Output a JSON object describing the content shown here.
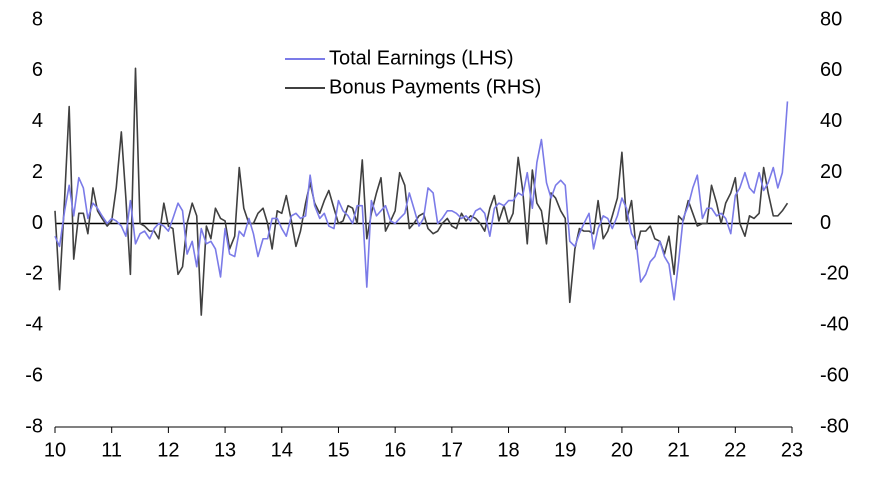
{
  "chart_data": {
    "type": "line",
    "x": [
      10.0,
      10.08,
      10.17,
      10.25,
      10.33,
      10.42,
      10.5,
      10.58,
      10.67,
      10.75,
      10.83,
      10.92,
      11.0,
      11.08,
      11.17,
      11.25,
      11.33,
      11.42,
      11.5,
      11.58,
      11.67,
      11.75,
      11.83,
      11.92,
      12.0,
      12.08,
      12.17,
      12.25,
      12.33,
      12.42,
      12.5,
      12.58,
      12.67,
      12.75,
      12.83,
      12.92,
      13.0,
      13.08,
      13.17,
      13.25,
      13.33,
      13.42,
      13.5,
      13.58,
      13.67,
      13.75,
      13.83,
      13.92,
      14.0,
      14.08,
      14.17,
      14.25,
      14.33,
      14.42,
      14.5,
      14.58,
      14.67,
      14.75,
      14.83,
      14.92,
      15.0,
      15.08,
      15.17,
      15.25,
      15.33,
      15.42,
      15.5,
      15.58,
      15.67,
      15.75,
      15.83,
      15.92,
      16.0,
      16.08,
      16.17,
      16.25,
      16.33,
      16.42,
      16.5,
      16.58,
      16.67,
      16.75,
      16.83,
      16.92,
      17.0,
      17.08,
      17.17,
      17.25,
      17.33,
      17.42,
      17.5,
      17.58,
      17.67,
      17.75,
      17.83,
      17.92,
      18.0,
      18.08,
      18.17,
      18.25,
      18.33,
      18.42,
      18.5,
      18.58,
      18.67,
      18.75,
      18.83,
      18.92,
      19.0,
      19.08,
      19.17,
      19.25,
      19.33,
      19.42,
      19.5,
      19.58,
      19.67,
      19.75,
      19.83,
      19.92,
      20.0,
      20.08,
      20.17,
      20.25,
      20.33,
      20.42,
      20.5,
      20.58,
      20.67,
      20.75,
      20.83,
      20.92,
      21.0,
      21.08,
      21.17,
      21.25,
      21.33,
      21.42,
      21.5,
      21.58,
      21.67,
      21.75,
      21.83,
      21.92,
      22.0,
      22.08,
      22.17,
      22.25,
      22.33,
      22.42,
      22.5,
      22.58,
      22.67,
      22.75,
      22.83,
      22.92
    ],
    "series": [
      {
        "name": "Total Earnings (LHS)",
        "color": "#7b7be8",
        "values": [
          -0.5,
          -0.9,
          0.5,
          1.5,
          0.3,
          1.8,
          1.4,
          0.2,
          0.8,
          0.6,
          0.3,
          0.0,
          0.2,
          0.1,
          -0.1,
          -0.5,
          0.9,
          -0.8,
          -0.4,
          -0.3,
          -0.6,
          -0.2,
          0.0,
          -0.1,
          -0.3,
          0.2,
          0.8,
          0.5,
          -1.2,
          -0.7,
          -1.7,
          -0.2,
          -0.8,
          -0.7,
          -1.0,
          -2.1,
          -0.2,
          -1.2,
          -1.3,
          -0.3,
          -0.5,
          0.2,
          -0.4,
          -1.3,
          -0.6,
          -0.6,
          0.2,
          0.2,
          -0.2,
          -0.5,
          0.3,
          0.4,
          0.2,
          0.3,
          1.9,
          0.7,
          0.2,
          0.4,
          -0.1,
          -0.2,
          0.9,
          0.5,
          0.3,
          0.0,
          0.7,
          0.7,
          -2.5,
          0.9,
          0.3,
          0.5,
          0.7,
          0.1,
          0.0,
          0.2,
          0.4,
          1.2,
          0.6,
          -0.1,
          0.2,
          1.4,
          1.2,
          0.0,
          0.2,
          0.5,
          0.5,
          0.4,
          0.2,
          0.3,
          0.1,
          0.5,
          0.6,
          0.4,
          -0.5,
          0.6,
          0.8,
          0.7,
          0.9,
          0.9,
          1.2,
          1.1,
          2.0,
          0.6,
          2.4,
          3.3,
          1.6,
          1.0,
          1.5,
          1.7,
          1.5,
          -0.7,
          -0.9,
          -0.4,
          0.0,
          0.4,
          -1.0,
          -0.2,
          0.3,
          0.2,
          -0.2,
          0.3,
          1.0,
          0.6,
          -0.4,
          -0.7,
          -2.3,
          -2.0,
          -1.5,
          -1.3,
          -0.7,
          -1.3,
          -1.6,
          -3.0,
          -1.5,
          0.2,
          0.7,
          1.4,
          1.9,
          0.2,
          0.6,
          0.6,
          0.3,
          0.4,
          0.2,
          -0.4,
          1.1,
          1.4,
          2.0,
          1.4,
          1.2,
          2.0,
          1.3,
          1.6,
          2.2,
          1.4,
          2.0,
          4.8
        ]
      },
      {
        "name": "Bonus Payments (RHS)",
        "color": "#404040",
        "axis": "y2",
        "values": [
          5,
          -26,
          10,
          46,
          -14,
          4,
          4,
          -4,
          14,
          5,
          2,
          -1,
          1,
          14,
          36,
          10,
          -20,
          61,
          0,
          -1,
          -3,
          -3,
          -6,
          8,
          -1,
          -2,
          -20,
          -17,
          0,
          8,
          3,
          -36,
          -1,
          -6,
          6,
          2,
          1,
          -10,
          -5,
          22,
          6,
          0,
          0,
          4,
          6,
          0,
          -10,
          5,
          4,
          11,
          1,
          -9,
          -3,
          8,
          16,
          8,
          4,
          9,
          13,
          6,
          0,
          1,
          7,
          6,
          0,
          25,
          -6,
          4,
          12,
          18,
          -3,
          1,
          5,
          20,
          15,
          -2,
          0,
          3,
          4,
          -2,
          -4,
          -3,
          0,
          2,
          -1,
          -2,
          4,
          1,
          3,
          2,
          0,
          -3,
          6,
          11,
          1,
          7,
          0,
          4,
          26,
          13,
          -8,
          21,
          8,
          5,
          -8,
          12,
          10,
          5,
          2,
          -31,
          -10,
          -2,
          -3,
          -3,
          -4,
          9,
          -6,
          -3,
          3,
          10,
          28,
          1,
          9,
          -10,
          -3,
          -3,
          -1,
          -6,
          -7,
          -12,
          -5,
          -20,
          3,
          1,
          9,
          4,
          -1,
          0,
          0,
          15,
          8,
          0,
          8,
          12,
          18,
          0,
          -5,
          3,
          2,
          4,
          22,
          12,
          3,
          3,
          5,
          8
        ]
      }
    ],
    "xlim": [
      10,
      23
    ],
    "xticks": [
      10,
      11,
      12,
      13,
      14,
      15,
      16,
      17,
      18,
      19,
      20,
      21,
      22,
      23
    ],
    "ylim": [
      -8,
      8
    ],
    "yticks": [
      -8,
      -6,
      -4,
      -2,
      0,
      2,
      4,
      6,
      8
    ],
    "y2lim": [
      -80,
      80
    ],
    "y2ticks": [
      -80,
      -60,
      -40,
      -20,
      0,
      20,
      40,
      60,
      80
    ],
    "legend": "top"
  }
}
